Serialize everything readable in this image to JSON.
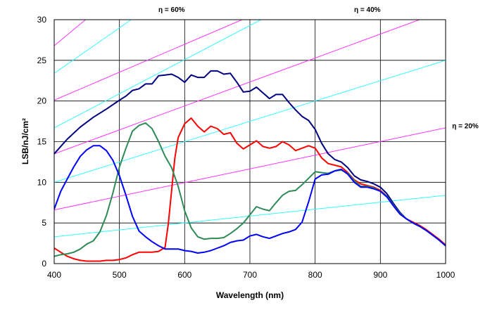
{
  "chart_data": {
    "type": "line",
    "xlabel": "Wavelength (nm)",
    "ylabel": "LSB/nJ/cm²",
    "xlim": [
      400,
      1000
    ],
    "ylim": [
      0,
      30
    ],
    "xticks": [
      400,
      500,
      600,
      700,
      800,
      900,
      1000
    ],
    "yticks": [
      0,
      5,
      10,
      15,
      20,
      25,
      30
    ],
    "grid": true,
    "legend": "none",
    "annotations": [
      {
        "text": "η = 60%",
        "x": 580,
        "y": 31.3
      },
      {
        "text": "η = 40%",
        "x": 880,
        "y": 31.3
      },
      {
        "text": "η = 20%",
        "x": 1010,
        "y": 17.0
      }
    ],
    "reference_lines": [
      {
        "color": "#ff33ff",
        "points": [
          [
            400,
            6.6
          ],
          [
            1000,
            16.7
          ]
        ]
      },
      {
        "color": "#ff33ff",
        "points": [
          [
            400,
            13.5
          ],
          [
            960,
            30
          ]
        ]
      },
      {
        "color": "#ff33ff",
        "points": [
          [
            400,
            20.1
          ],
          [
            688,
            30
          ]
        ]
      },
      {
        "color": "#ff33ff",
        "points": [
          [
            400,
            26.8
          ],
          [
            448,
            30
          ]
        ]
      },
      {
        "color": "#33ffff",
        "points": [
          [
            400,
            3.3
          ],
          [
            1000,
            8.4
          ]
        ]
      },
      {
        "color": "#33ffff",
        "points": [
          [
            400,
            10.0
          ],
          [
            1000,
            25.0
          ]
        ]
      },
      {
        "color": "#33ffff",
        "points": [
          [
            400,
            16.7
          ],
          [
            717,
            30
          ]
        ]
      },
      {
        "color": "#33ffff",
        "points": [
          [
            400,
            23.4
          ],
          [
            518,
            30
          ]
        ]
      }
    ],
    "series": [
      {
        "color": "#000080",
        "points": [
          [
            400,
            13.5
          ],
          [
            420,
            15.3
          ],
          [
            440,
            16.8
          ],
          [
            460,
            18.0
          ],
          [
            480,
            19.0
          ],
          [
            500,
            20.1
          ],
          [
            510,
            20.6
          ],
          [
            520,
            21.3
          ],
          [
            530,
            21.5
          ],
          [
            540,
            22.1
          ],
          [
            550,
            22.1
          ],
          [
            560,
            23.1
          ],
          [
            570,
            23.2
          ],
          [
            580,
            23.3
          ],
          [
            590,
            22.9
          ],
          [
            600,
            22.3
          ],
          [
            610,
            23.2
          ],
          [
            620,
            22.9
          ],
          [
            630,
            22.9
          ],
          [
            640,
            23.7
          ],
          [
            650,
            23.7
          ],
          [
            660,
            23.3
          ],
          [
            670,
            23.4
          ],
          [
            680,
            22.3
          ],
          [
            690,
            21.1
          ],
          [
            700,
            21.2
          ],
          [
            710,
            21.7
          ],
          [
            720,
            21.0
          ],
          [
            730,
            20.3
          ],
          [
            740,
            20.8
          ],
          [
            750,
            20.8
          ],
          [
            760,
            19.8
          ],
          [
            770,
            18.9
          ],
          [
            780,
            18.1
          ],
          [
            790,
            17.6
          ],
          [
            800,
            16.5
          ],
          [
            810,
            14.8
          ],
          [
            820,
            13.5
          ],
          [
            830,
            12.8
          ],
          [
            840,
            12.5
          ],
          [
            850,
            11.8
          ],
          [
            860,
            10.8
          ],
          [
            870,
            10.3
          ],
          [
            880,
            10.1
          ],
          [
            890,
            9.8
          ],
          [
            900,
            9.4
          ],
          [
            910,
            8.6
          ],
          [
            920,
            7.4
          ],
          [
            930,
            6.3
          ],
          [
            940,
            5.5
          ],
          [
            950,
            5.0
          ],
          [
            960,
            4.6
          ],
          [
            970,
            4.1
          ],
          [
            980,
            3.5
          ],
          [
            990,
            2.9
          ],
          [
            1000,
            2.2
          ]
        ]
      },
      {
        "color": "#ff0000",
        "points": [
          [
            400,
            1.9
          ],
          [
            410,
            1.4
          ],
          [
            420,
            0.9
          ],
          [
            430,
            0.6
          ],
          [
            440,
            0.4
          ],
          [
            450,
            0.3
          ],
          [
            460,
            0.3
          ],
          [
            470,
            0.3
          ],
          [
            480,
            0.4
          ],
          [
            490,
            0.4
          ],
          [
            500,
            0.5
          ],
          [
            510,
            0.7
          ],
          [
            520,
            1.1
          ],
          [
            530,
            1.4
          ],
          [
            540,
            1.4
          ],
          [
            550,
            1.4
          ],
          [
            560,
            1.5
          ],
          [
            570,
            2.0
          ],
          [
            575,
            5.0
          ],
          [
            580,
            9.0
          ],
          [
            585,
            13.0
          ],
          [
            590,
            15.5
          ],
          [
            600,
            17.2
          ],
          [
            610,
            17.9
          ],
          [
            620,
            16.9
          ],
          [
            630,
            16.2
          ],
          [
            640,
            16.9
          ],
          [
            650,
            16.6
          ],
          [
            660,
            15.9
          ],
          [
            670,
            16.1
          ],
          [
            680,
            14.8
          ],
          [
            690,
            14.1
          ],
          [
            700,
            14.6
          ],
          [
            710,
            15.1
          ],
          [
            720,
            14.4
          ],
          [
            730,
            14.2
          ],
          [
            740,
            14.4
          ],
          [
            750,
            15.0
          ],
          [
            760,
            14.6
          ],
          [
            770,
            13.9
          ],
          [
            780,
            14.2
          ],
          [
            790,
            14.5
          ],
          [
            800,
            14.2
          ],
          [
            810,
            13.0
          ],
          [
            820,
            12.3
          ],
          [
            830,
            12.1
          ],
          [
            840,
            11.9
          ],
          [
            850,
            11.2
          ],
          [
            860,
            10.3
          ],
          [
            870,
            9.8
          ],
          [
            880,
            9.6
          ],
          [
            890,
            9.4
          ],
          [
            900,
            9.0
          ],
          [
            910,
            8.3
          ],
          [
            920,
            7.1
          ],
          [
            930,
            6.1
          ],
          [
            940,
            5.5
          ],
          [
            950,
            5.1
          ],
          [
            960,
            4.7
          ],
          [
            970,
            4.2
          ],
          [
            980,
            3.6
          ],
          [
            990,
            3.0
          ],
          [
            1000,
            2.3
          ]
        ]
      },
      {
        "color": "#2e8b57",
        "points": [
          [
            400,
            0.9
          ],
          [
            410,
            1.1
          ],
          [
            420,
            1.2
          ],
          [
            430,
            1.4
          ],
          [
            440,
            1.8
          ],
          [
            450,
            2.4
          ],
          [
            460,
            2.8
          ],
          [
            470,
            3.9
          ],
          [
            480,
            5.9
          ],
          [
            490,
            8.7
          ],
          [
            500,
            11.9
          ],
          [
            510,
            14.2
          ],
          [
            520,
            16.3
          ],
          [
            530,
            17.0
          ],
          [
            540,
            17.3
          ],
          [
            550,
            16.6
          ],
          [
            560,
            15.0
          ],
          [
            570,
            13.2
          ],
          [
            580,
            11.8
          ],
          [
            590,
            9.5
          ],
          [
            600,
            6.5
          ],
          [
            610,
            4.4
          ],
          [
            620,
            3.3
          ],
          [
            630,
            3.0
          ],
          [
            640,
            3.1
          ],
          [
            650,
            3.1
          ],
          [
            660,
            3.2
          ],
          [
            670,
            3.7
          ],
          [
            680,
            4.3
          ],
          [
            690,
            5.0
          ],
          [
            700,
            6.0
          ],
          [
            710,
            7.0
          ],
          [
            720,
            6.7
          ],
          [
            730,
            6.5
          ],
          [
            740,
            7.5
          ],
          [
            750,
            8.4
          ],
          [
            760,
            8.9
          ],
          [
            770,
            9.0
          ],
          [
            780,
            9.7
          ],
          [
            790,
            10.5
          ],
          [
            800,
            11.3
          ],
          [
            810,
            11.2
          ],
          [
            820,
            11.1
          ],
          [
            830,
            11.4
          ],
          [
            840,
            11.5
          ],
          [
            850,
            11.1
          ],
          [
            860,
            10.2
          ],
          [
            870,
            9.5
          ],
          [
            880,
            9.5
          ],
          [
            890,
            9.3
          ],
          [
            900,
            8.9
          ],
          [
            910,
            8.3
          ],
          [
            920,
            7.2
          ],
          [
            930,
            6.2
          ],
          [
            940,
            5.5
          ],
          [
            950,
            5.0
          ],
          [
            960,
            4.6
          ],
          [
            970,
            4.1
          ],
          [
            980,
            3.5
          ],
          [
            990,
            2.9
          ],
          [
            1000,
            2.2
          ]
        ]
      },
      {
        "color": "#0000ff",
        "points": [
          [
            400,
            6.7
          ],
          [
            410,
            8.9
          ],
          [
            420,
            10.4
          ],
          [
            430,
            11.9
          ],
          [
            440,
            13.2
          ],
          [
            450,
            14.0
          ],
          [
            460,
            14.5
          ],
          [
            470,
            14.5
          ],
          [
            480,
            13.9
          ],
          [
            490,
            12.7
          ],
          [
            500,
            10.8
          ],
          [
            510,
            8.4
          ],
          [
            520,
            5.8
          ],
          [
            530,
            4.0
          ],
          [
            540,
            3.3
          ],
          [
            550,
            2.7
          ],
          [
            560,
            2.2
          ],
          [
            570,
            1.8
          ],
          [
            580,
            1.8
          ],
          [
            590,
            1.8
          ],
          [
            600,
            1.6
          ],
          [
            610,
            1.5
          ],
          [
            620,
            1.3
          ],
          [
            630,
            1.4
          ],
          [
            640,
            1.6
          ],
          [
            650,
            1.9
          ],
          [
            660,
            2.2
          ],
          [
            670,
            2.6
          ],
          [
            680,
            2.8
          ],
          [
            690,
            2.9
          ],
          [
            700,
            3.4
          ],
          [
            710,
            3.6
          ],
          [
            720,
            3.3
          ],
          [
            730,
            3.1
          ],
          [
            740,
            3.4
          ],
          [
            750,
            3.7
          ],
          [
            760,
            3.9
          ],
          [
            770,
            4.2
          ],
          [
            780,
            5.1
          ],
          [
            790,
            7.6
          ],
          [
            800,
            10.4
          ],
          [
            810,
            10.9
          ],
          [
            820,
            11.0
          ],
          [
            830,
            11.4
          ],
          [
            840,
            11.6
          ],
          [
            850,
            11.0
          ],
          [
            860,
            10.0
          ],
          [
            870,
            9.4
          ],
          [
            880,
            9.4
          ],
          [
            890,
            9.2
          ],
          [
            900,
            8.9
          ],
          [
            910,
            8.2
          ],
          [
            920,
            7.1
          ],
          [
            930,
            6.1
          ],
          [
            940,
            5.5
          ],
          [
            950,
            5.0
          ],
          [
            960,
            4.6
          ],
          [
            970,
            4.1
          ],
          [
            980,
            3.5
          ],
          [
            990,
            2.9
          ],
          [
            1000,
            2.2
          ]
        ]
      }
    ]
  }
}
